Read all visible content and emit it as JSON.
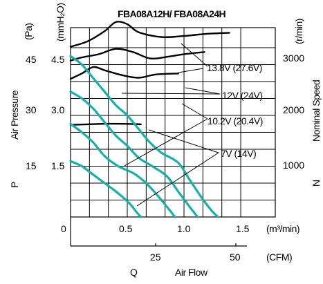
{
  "chart_data": {
    "type": "line",
    "title": "FBA08A12H/ FBA08A24H",
    "x_axis_primary": {
      "label": "(m³/min)",
      "ticks": [
        "0",
        "0.5",
        "1.0",
        "1.5"
      ],
      "range": [
        0,
        1.6
      ]
    },
    "x_axis_secondary": {
      "label": "(CFM)",
      "ticks": [
        "25",
        "50"
      ],
      "name_letter": "Q",
      "name": "Air Flow"
    },
    "y_axis_left": {
      "label": "Air Pressure",
      "letter": "P",
      "unit_pa": "(Pa)",
      "unit_mmh2o": "(mmH₂O)",
      "ticks_pa": [
        "15",
        "30",
        "45"
      ],
      "ticks_mmh2o": [
        "1.5",
        "3.0",
        "4.5"
      ],
      "range_mmh2o": [
        0,
        5.5
      ]
    },
    "y_axis_right": {
      "label": "Nominal Speed",
      "letter": "N",
      "unit": "(r/min)",
      "ticks": [
        "1000",
        "2000",
        "3000"
      ],
      "range": [
        0,
        3700
      ]
    },
    "series_labels": [
      "13.8V (27.6V)",
      "12V (24V)",
      "10.2V (20.4V)",
      "7V (14V)"
    ],
    "pressure_curves": [
      {
        "voltage": "13.8V (27.6V)",
        "points": [
          [
            0,
            4.75
          ],
          [
            0.1,
            4.5
          ],
          [
            0.2,
            4.1
          ],
          [
            0.3,
            3.7
          ],
          [
            0.4,
            3.3
          ],
          [
            0.5,
            3.0
          ],
          [
            0.6,
            2.6
          ],
          [
            0.7,
            2.2
          ],
          [
            0.8,
            1.9
          ],
          [
            0.95,
            1.6
          ],
          [
            1.05,
            1.1
          ],
          [
            1.15,
            0.6
          ],
          [
            1.24,
            0.2
          ],
          [
            1.3,
            0
          ]
        ]
      },
      {
        "voltage": "12V (24V)",
        "points": [
          [
            0,
            3.7
          ],
          [
            0.1,
            3.5
          ],
          [
            0.2,
            3.2
          ],
          [
            0.3,
            2.8
          ],
          [
            0.4,
            2.4
          ],
          [
            0.5,
            2.1
          ],
          [
            0.6,
            1.75
          ],
          [
            0.72,
            1.5
          ],
          [
            0.85,
            1.2
          ],
          [
            0.95,
            0.75
          ],
          [
            1.05,
            0.3
          ],
          [
            1.12,
            0
          ]
        ]
      },
      {
        "voltage": "10.2V (20.4V)",
        "points": [
          [
            0,
            2.75
          ],
          [
            0.1,
            2.5
          ],
          [
            0.2,
            2.2
          ],
          [
            0.3,
            1.8
          ],
          [
            0.42,
            1.5
          ],
          [
            0.55,
            1.3
          ],
          [
            0.65,
            1.05
          ],
          [
            0.75,
            0.7
          ],
          [
            0.85,
            0.3
          ],
          [
            0.92,
            0
          ]
        ]
      },
      {
        "voltage": "7V (14V)",
        "points": [
          [
            0,
            1.65
          ],
          [
            0.1,
            1.5
          ],
          [
            0.2,
            1.25
          ],
          [
            0.32,
            0.95
          ],
          [
            0.42,
            0.7
          ],
          [
            0.52,
            0.4
          ],
          [
            0.58,
            0.15
          ],
          [
            0.62,
            0
          ]
        ]
      }
    ],
    "speed_curves": [
      {
        "voltage": "13.8V (27.6V)",
        "points": [
          [
            0,
            3180
          ],
          [
            0.15,
            3280
          ],
          [
            0.3,
            3470
          ],
          [
            0.4,
            3640
          ],
          [
            0.5,
            3600
          ],
          [
            0.6,
            3450
          ],
          [
            0.8,
            3360
          ],
          [
            1.0,
            3380
          ],
          [
            1.2,
            3420
          ],
          [
            1.4,
            3440
          ]
        ]
      },
      {
        "voltage": "12V (24V)",
        "points": [
          [
            0,
            2920
          ],
          [
            0.1,
            2980
          ],
          [
            0.25,
            3040
          ],
          [
            0.4,
            3140
          ],
          [
            0.55,
            3080
          ],
          [
            0.7,
            2960
          ],
          [
            0.85,
            2990
          ],
          [
            1.0,
            3040
          ],
          [
            1.18,
            3080
          ]
        ]
      },
      {
        "voltage": "10.2V (20.4V)",
        "points": [
          [
            0,
            2580
          ],
          [
            0.1,
            2680
          ],
          [
            0.2,
            2800
          ],
          [
            0.3,
            2740
          ],
          [
            0.45,
            2650
          ],
          [
            0.6,
            2600
          ],
          [
            0.75,
            2660
          ],
          [
            0.95,
            2680
          ]
        ]
      },
      {
        "voltage": "7V (14V)",
        "points": [
          [
            0,
            1720
          ],
          [
            0.15,
            1730
          ],
          [
            0.3,
            1740
          ],
          [
            0.45,
            1740
          ],
          [
            0.55,
            1735
          ],
          [
            0.62,
            1730
          ]
        ]
      }
    ],
    "grid": true,
    "colors": {
      "pressure": "#14b1ab",
      "speed": "#000000"
    }
  }
}
